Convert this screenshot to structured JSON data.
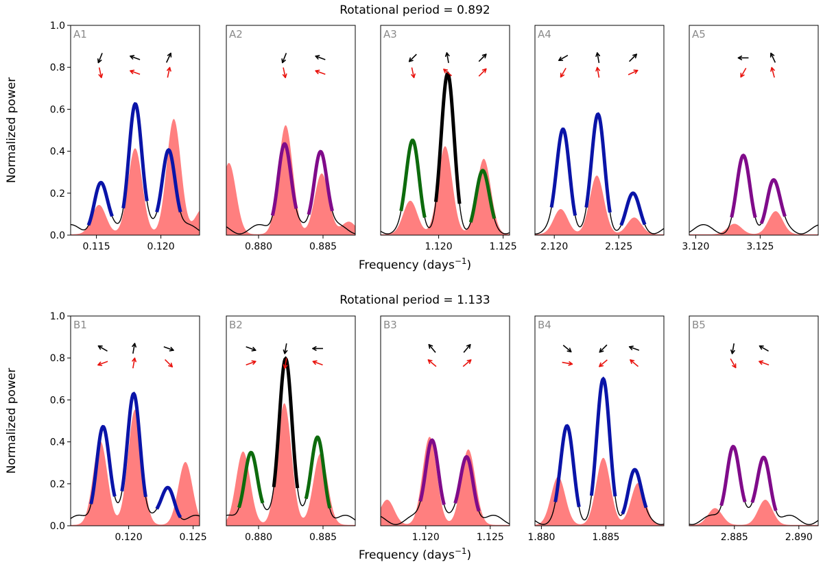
{
  "figure": {
    "row_titles": [
      "Rotational period = 0.892",
      "Rotational period = 1.133"
    ],
    "ylabel": "Normalized power",
    "xlabel": "Frequency (days",
    "xlabel_sup": "−1",
    "xlabel_close": ")",
    "y_ticks": [
      "0.0",
      "0.2",
      "0.4",
      "0.6",
      "0.8",
      "1.0"
    ],
    "colors": {
      "fill": "#ff7f7f",
      "blue": "#0a14a8",
      "purple": "#800b8a",
      "green": "#0d6b0d",
      "black": "#000000",
      "arrow_red": "#e8120d",
      "label": "#8a8a8a"
    }
  },
  "chart_data": [
    {
      "type": "area",
      "label": "A1",
      "xlim": [
        0.113,
        0.123
      ],
      "ylim": [
        0,
        1
      ],
      "xticks": [
        0.115,
        0.12
      ],
      "xtick_labels": [
        "0.115",
        "0.120"
      ],
      "peaks": [
        {
          "f": 0.1153,
          "p": 0.22,
          "c": "blue"
        },
        {
          "f": 0.118,
          "p": 0.61,
          "c": "blue"
        },
        {
          "f": 0.1206,
          "p": 0.4,
          "c": "blue"
        }
      ],
      "fill_peaks": [
        {
          "f": 0.1152,
          "p": 0.14
        },
        {
          "f": 0.118,
          "p": 0.41
        },
        {
          "f": 0.121,
          "p": 0.55
        },
        {
          "f": 0.1232,
          "p": 0.12
        }
      ],
      "arrows_black": [
        -112,
        160,
        65
      ],
      "arrows_red": [
        -78,
        160,
        78
      ]
    },
    {
      "type": "area",
      "label": "A2",
      "xlim": [
        0.8775,
        0.8875
      ],
      "ylim": [
        0,
        1
      ],
      "xticks": [
        0.88,
        0.885
      ],
      "xtick_labels": [
        "0.880",
        "0.885"
      ],
      "peaks": [
        {
          "f": 0.882,
          "p": 0.42,
          "c": "purple"
        },
        {
          "f": 0.8848,
          "p": 0.39,
          "c": "purple"
        }
      ],
      "fill_peaks": [
        {
          "f": 0.8777,
          "p": 0.34
        },
        {
          "f": 0.8821,
          "p": 0.52
        },
        {
          "f": 0.8849,
          "p": 0.29
        },
        {
          "f": 0.887,
          "p": 0.06
        }
      ],
      "arrows_black": [
        -112,
        160
      ],
      "arrows_red": [
        -78,
        160
      ]
    },
    {
      "type": "area",
      "label": "A3",
      "xlim": [
        1.1155,
        1.1255
      ],
      "ylim": [
        0,
        1
      ],
      "xticks": [
        1.12,
        1.125
      ],
      "xtick_labels": [
        "1.120",
        "1.125"
      ],
      "peaks": [
        {
          "f": 1.118,
          "p": 0.41,
          "c": "green"
        },
        {
          "f": 1.1207,
          "p": 0.72,
          "c": "black"
        },
        {
          "f": 1.1234,
          "p": 0.26,
          "c": "green"
        }
      ],
      "fill_peaks": [
        {
          "f": 1.1178,
          "p": 0.16
        },
        {
          "f": 1.1205,
          "p": 0.42
        },
        {
          "f": 1.1235,
          "p": 0.36
        }
      ],
      "arrows_black": [
        -135,
        100,
        45
      ],
      "arrows_red": [
        -78,
        140,
        45
      ]
    },
    {
      "type": "area",
      "label": "A4",
      "xlim": [
        2.1185,
        2.1285
      ],
      "ylim": [
        0,
        1
      ],
      "xticks": [
        2.12,
        2.125
      ],
      "xtick_labels": [
        "2.120",
        "2.125"
      ],
      "peaks": [
        {
          "f": 2.1207,
          "p": 0.47,
          "c": "blue"
        },
        {
          "f": 2.1234,
          "p": 0.53,
          "c": "blue"
        },
        {
          "f": 2.1261,
          "p": 0.15,
          "c": "blue"
        }
      ],
      "fill_peaks": [
        {
          "f": 2.1205,
          "p": 0.12
        },
        {
          "f": 2.1233,
          "p": 0.28
        },
        {
          "f": 2.1262,
          "p": 0.08
        }
      ],
      "arrows_black": [
        -150,
        100,
        45
      ],
      "arrows_red": [
        -120,
        100,
        25
      ]
    },
    {
      "type": "area",
      "label": "A5",
      "xlim": [
        3.1195,
        3.1295
      ],
      "ylim": [
        0,
        1
      ],
      "xticks": [
        3.12,
        3.125
      ],
      "xtick_labels": [
        "3.120",
        "3.125"
      ],
      "peaks": [
        {
          "f": 3.1237,
          "p": 0.33,
          "c": "purple"
        },
        {
          "f": 3.126,
          "p": 0.23,
          "c": "purple"
        }
      ],
      "fill_peaks": [
        {
          "f": 3.123,
          "p": 0.05
        },
        {
          "f": 3.1262,
          "p": 0.11
        }
      ],
      "arrows_black": [
        180,
        115
      ],
      "arrows_red": [
        -120,
        105
      ]
    },
    {
      "type": "area",
      "label": "B1",
      "xlim": [
        0.1155,
        0.1255
      ],
      "ylim": [
        0,
        1
      ],
      "xticks": [
        0.12,
        0.125
      ],
      "xtick_labels": [
        "0.120",
        "0.125"
      ],
      "peaks": [
        {
          "f": 0.118,
          "p": 0.46,
          "c": "blue"
        },
        {
          "f": 0.1204,
          "p": 0.62,
          "c": "blue"
        },
        {
          "f": 0.1231,
          "p": 0.16,
          "c": "blue"
        }
      ],
      "fill_peaks": [
        {
          "f": 0.1178,
          "p": 0.4
        },
        {
          "f": 0.1205,
          "p": 0.55
        },
        {
          "f": 0.1244,
          "p": 0.3
        }
      ],
      "arrows_black": [
        150,
        80,
        -20
      ],
      "arrows_red": [
        -160,
        80,
        -45
      ]
    },
    {
      "type": "area",
      "label": "B2",
      "xlim": [
        0.8775,
        0.8875
      ],
      "ylim": [
        0,
        1
      ],
      "xticks": [
        0.88,
        0.885
      ],
      "xtick_labels": [
        "0.880",
        "0.885"
      ],
      "peaks": [
        {
          "f": 0.8794,
          "p": 0.34,
          "c": "green"
        },
        {
          "f": 0.8821,
          "p": 0.79,
          "c": "black"
        },
        {
          "f": 0.8846,
          "p": 0.4,
          "c": "green"
        }
      ],
      "fill_peaks": [
        {
          "f": 0.8788,
          "p": 0.35
        },
        {
          "f": 0.882,
          "p": 0.58
        },
        {
          "f": 0.8848,
          "p": 0.34
        }
      ],
      "arrows_black": [
        -20,
        -100,
        180
      ],
      "arrows_red": [
        20,
        -100,
        160
      ]
    },
    {
      "type": "area",
      "label": "B3",
      "xlim": [
        1.1165,
        1.1265
      ],
      "ylim": [
        0,
        1
      ],
      "xticks": [
        1.12,
        1.125
      ],
      "xtick_labels": [
        "1.120",
        "1.125"
      ],
      "peaks": [
        {
          "f": 1.1205,
          "p": 0.4,
          "c": "purple"
        },
        {
          "f": 1.1232,
          "p": 0.31,
          "c": "purple"
        }
      ],
      "fill_peaks": [
        {
          "f": 1.117,
          "p": 0.12
        },
        {
          "f": 1.1203,
          "p": 0.42
        },
        {
          "f": 1.1233,
          "p": 0.36
        }
      ],
      "arrows_black": [
        130,
        50
      ],
      "arrows_red": [
        140,
        40
      ]
    },
    {
      "type": "area",
      "label": "B4",
      "xlim": [
        1.8795,
        1.8895
      ],
      "ylim": [
        0,
        1
      ],
      "xticks": [
        1.88,
        1.885
      ],
      "xtick_labels": [
        "1.880",
        "1.885"
      ],
      "peaks": [
        {
          "f": 1.882,
          "p": 0.43,
          "c": "blue"
        },
        {
          "f": 1.8848,
          "p": 0.65,
          "c": "blue"
        },
        {
          "f": 1.8872,
          "p": 0.23,
          "c": "blue"
        }
      ],
      "fill_peaks": [
        {
          "f": 1.8813,
          "p": 0.23
        },
        {
          "f": 1.8848,
          "p": 0.32
        },
        {
          "f": 1.8875,
          "p": 0.2
        }
      ],
      "arrows_black": [
        -40,
        -135,
        160
      ],
      "arrows_red": [
        -10,
        -140,
        140
      ]
    },
    {
      "type": "area",
      "label": "B5",
      "xlim": [
        2.8815,
        2.8915
      ],
      "ylim": [
        0,
        1
      ],
      "xticks": [
        2.885,
        2.89
      ],
      "xtick_labels": [
        "2.885",
        "2.890"
      ],
      "peaks": [
        {
          "f": 2.8849,
          "p": 0.37,
          "c": "purple"
        },
        {
          "f": 2.8873,
          "p": 0.31,
          "c": "purple"
        }
      ],
      "fill_peaks": [
        {
          "f": 2.8835,
          "p": 0.08
        },
        {
          "f": 2.8874,
          "p": 0.12
        }
      ],
      "arrows_black": [
        -100,
        150
      ],
      "arrows_red": [
        -60,
        160
      ]
    }
  ]
}
